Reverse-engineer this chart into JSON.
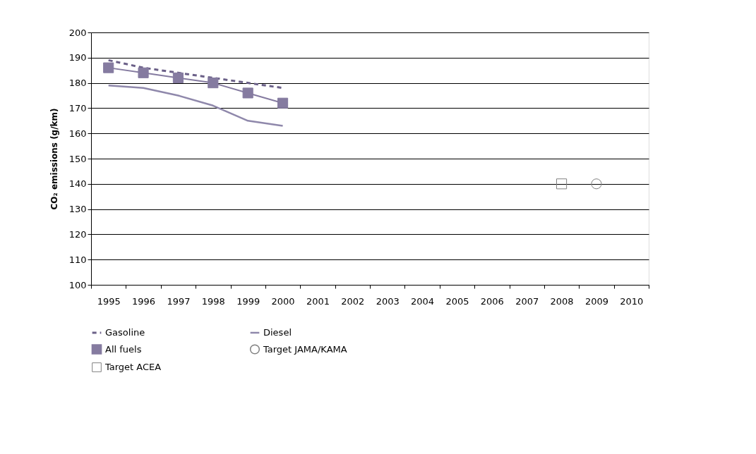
{
  "chart_data": {
    "type": "line",
    "ylabel": "CO₂ emissions (g/km)",
    "categories": [
      "1995",
      "1996",
      "1997",
      "1998",
      "1999",
      "2000",
      "2001",
      "2002",
      "2003",
      "2004",
      "2005",
      "2006",
      "2007",
      "2008",
      "2009",
      "2010"
    ],
    "ylim": [
      100,
      200
    ],
    "yticks": [
      100,
      110,
      120,
      130,
      140,
      150,
      160,
      170,
      180,
      190,
      200
    ],
    "grid": "y",
    "legend": "bottom",
    "series": [
      {
        "name": "Gasoline",
        "color": "#6b6088",
        "line_style": "dashed",
        "marker": "none",
        "values": [
          189,
          186,
          184,
          182,
          180,
          178,
          null,
          null,
          null,
          null,
          null,
          null,
          null,
          null,
          null,
          null
        ]
      },
      {
        "name": "Diesel",
        "color": "#8f88ab",
        "line_style": "solid",
        "marker": "none",
        "values": [
          179,
          178,
          175,
          171,
          165,
          163,
          null,
          null,
          null,
          null,
          null,
          null,
          null,
          null,
          null,
          null
        ]
      },
      {
        "name": "All fuels",
        "color": "#857ba0",
        "line_style": "solid",
        "marker": "square",
        "values": [
          186,
          184,
          182,
          180,
          176,
          172,
          null,
          null,
          null,
          null,
          null,
          null,
          null,
          null,
          null,
          null
        ]
      },
      {
        "name": "Target JAMA/KAMA",
        "type": "scatter",
        "color": "#808080",
        "marker": "circle",
        "values": [
          null,
          null,
          null,
          null,
          null,
          null,
          null,
          null,
          null,
          null,
          null,
          null,
          null,
          null,
          140,
          null
        ]
      },
      {
        "name": "Target ACEA",
        "type": "scatter",
        "color": "#808080",
        "marker": "square",
        "values": [
          null,
          null,
          null,
          null,
          null,
          null,
          null,
          null,
          null,
          null,
          null,
          null,
          null,
          140,
          null,
          null
        ]
      }
    ]
  }
}
